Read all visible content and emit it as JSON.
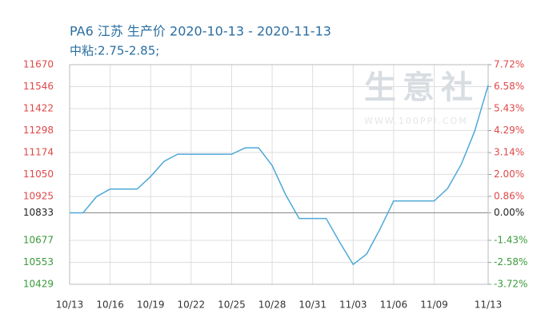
{
  "chart_data": {
    "type": "line",
    "title": "PA6 江苏 生产价 2020-10-13 - 2020-11-13",
    "subtitle": "中粘:2.75-2.85;",
    "annotations": [
      "生意社",
      "WWW.100PPI.COM"
    ],
    "categories": [
      "10/13",
      null,
      null,
      "10/16",
      null,
      null,
      "10/19",
      null,
      null,
      "10/22",
      null,
      null,
      "10/25",
      null,
      null,
      "10/28",
      null,
      null,
      "10/31",
      null,
      null,
      "11/03",
      null,
      null,
      "11/06",
      null,
      null,
      "11/09",
      null,
      null,
      null,
      "11/13"
    ],
    "values": [
      10833,
      10833,
      10925,
      10967,
      10967,
      10967,
      11038,
      11124,
      11164,
      11164,
      11164,
      11164,
      11164,
      11200,
      11200,
      11100,
      10935,
      10801,
      10801,
      10801,
      10667,
      10541,
      10600,
      10743,
      10900,
      10900,
      10900,
      10900,
      10971,
      11106,
      11294,
      11554
    ],
    "color": "#4fa8d8",
    "ylim": [
      10429,
      11670
    ],
    "yticks": [
      11670,
      11546,
      11422,
      11298,
      11174,
      11050,
      10925,
      10833,
      10677,
      10553,
      10429
    ],
    "y2lim": [
      -3.72,
      7.72
    ],
    "y2ticks": [
      {
        "value": 7.72,
        "label": "7.72%"
      },
      {
        "value": 6.58,
        "label": "6.58%"
      },
      {
        "value": 5.43,
        "label": "5.43%"
      },
      {
        "value": 4.29,
        "label": "4.29%"
      },
      {
        "value": 3.14,
        "label": "3.14%"
      },
      {
        "value": 2.0,
        "label": "2.00%"
      },
      {
        "value": 0.86,
        "label": "0.86%"
      },
      {
        "value": 0,
        "label": "0.00%"
      },
      {
        "value": -1.43,
        "label": "-1.43%"
      },
      {
        "value": -2.58,
        "label": "-2.58%"
      },
      {
        "value": -3.72,
        "label": "-3.72%"
      }
    ],
    "grid": true
  }
}
